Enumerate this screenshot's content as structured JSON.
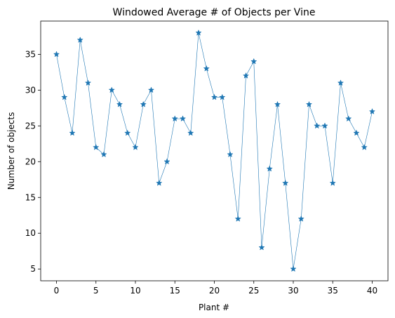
{
  "chart_data": {
    "type": "line",
    "title": "Windowed Average # of Objects per Vine",
    "xlabel": "Plant #",
    "ylabel": "Number of objects",
    "xlim": [
      -2,
      42
    ],
    "ylim": [
      3.35,
      39.65
    ],
    "xticks": [
      0,
      5,
      10,
      15,
      20,
      25,
      30,
      35,
      40
    ],
    "yticks": [
      5,
      10,
      15,
      20,
      25,
      30,
      35
    ],
    "grid": false,
    "series": [
      {
        "color": "#1f77b4",
        "marker": "star",
        "x": [
          0,
          1,
          2,
          3,
          4,
          5,
          6,
          7,
          8,
          9,
          10,
          11,
          12,
          13,
          14,
          15,
          16,
          17,
          18,
          19,
          20,
          21,
          22,
          23,
          24,
          25,
          26,
          27,
          28,
          29,
          30,
          31,
          32,
          33,
          34,
          35,
          36,
          37,
          38,
          39,
          40
        ],
        "values": [
          35,
          29,
          24,
          37,
          31,
          22,
          21,
          30,
          28,
          24,
          22,
          28,
          30,
          17,
          20,
          26,
          26,
          24,
          38,
          33,
          29,
          29,
          21,
          12,
          32,
          34,
          8,
          19,
          28,
          17,
          5,
          12,
          28,
          25,
          25,
          17,
          31,
          26,
          24,
          22,
          27
        ]
      }
    ]
  }
}
